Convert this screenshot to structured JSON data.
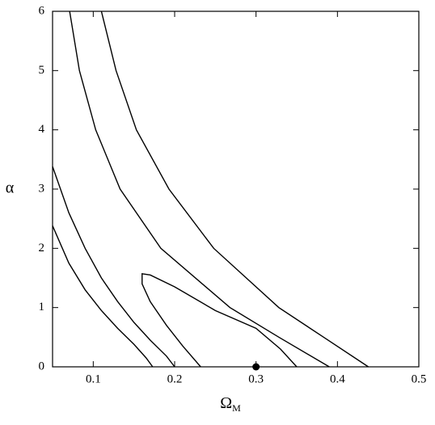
{
  "chart_data": {
    "type": "line",
    "xlabel": "Ω",
    "xlabel_sub": "M",
    "ylabel": "α",
    "xlim": [
      0.05,
      0.5
    ],
    "ylim": [
      0,
      6
    ],
    "xticks": [
      0.1,
      0.2,
      0.3,
      0.4,
      0.5
    ],
    "yticks": [
      0,
      1,
      2,
      3,
      4,
      5,
      6
    ],
    "series": [
      {
        "color": "#000000",
        "x": [
          0.05,
          0.07,
          0.09,
          0.11,
          0.13,
          0.15,
          0.165,
          0.173
        ],
        "values": [
          2.38,
          1.75,
          1.3,
          0.95,
          0.65,
          0.38,
          0.15,
          0
        ]
      },
      {
        "color": "#000000",
        "x": [
          0.05,
          0.07,
          0.09,
          0.11,
          0.13,
          0.15,
          0.17,
          0.19,
          0.2
        ],
        "values": [
          3.38,
          2.6,
          2.0,
          1.5,
          1.1,
          0.75,
          0.45,
          0.18,
          0
        ]
      },
      {
        "color": "#000000",
        "x": [
          0.232,
          0.21,
          0.19,
          0.17,
          0.16,
          0.16,
          0.17,
          0.2,
          0.25,
          0.3,
          0.33,
          0.35
        ],
        "values": [
          0,
          0.35,
          0.7,
          1.1,
          1.4,
          1.57,
          1.55,
          1.35,
          0.95,
          0.65,
          0.3,
          0
        ]
      },
      {
        "color": "#000000",
        "x": [
          0.071,
          0.083,
          0.103,
          0.133,
          0.183,
          0.268,
          0.328,
          0.39
        ],
        "values": [
          6,
          5,
          4,
          3,
          2,
          1,
          0.5,
          0
        ]
      },
      {
        "color": "#000000",
        "x": [
          0.11,
          0.128,
          0.153,
          0.193,
          0.248,
          0.328,
          0.383,
          0.438
        ],
        "values": [
          6,
          5,
          4,
          3,
          2,
          1,
          0.5,
          0
        ]
      }
    ],
    "markers": {
      "color": "#000000",
      "x": [
        0.3
      ],
      "values": [
        0
      ]
    }
  }
}
